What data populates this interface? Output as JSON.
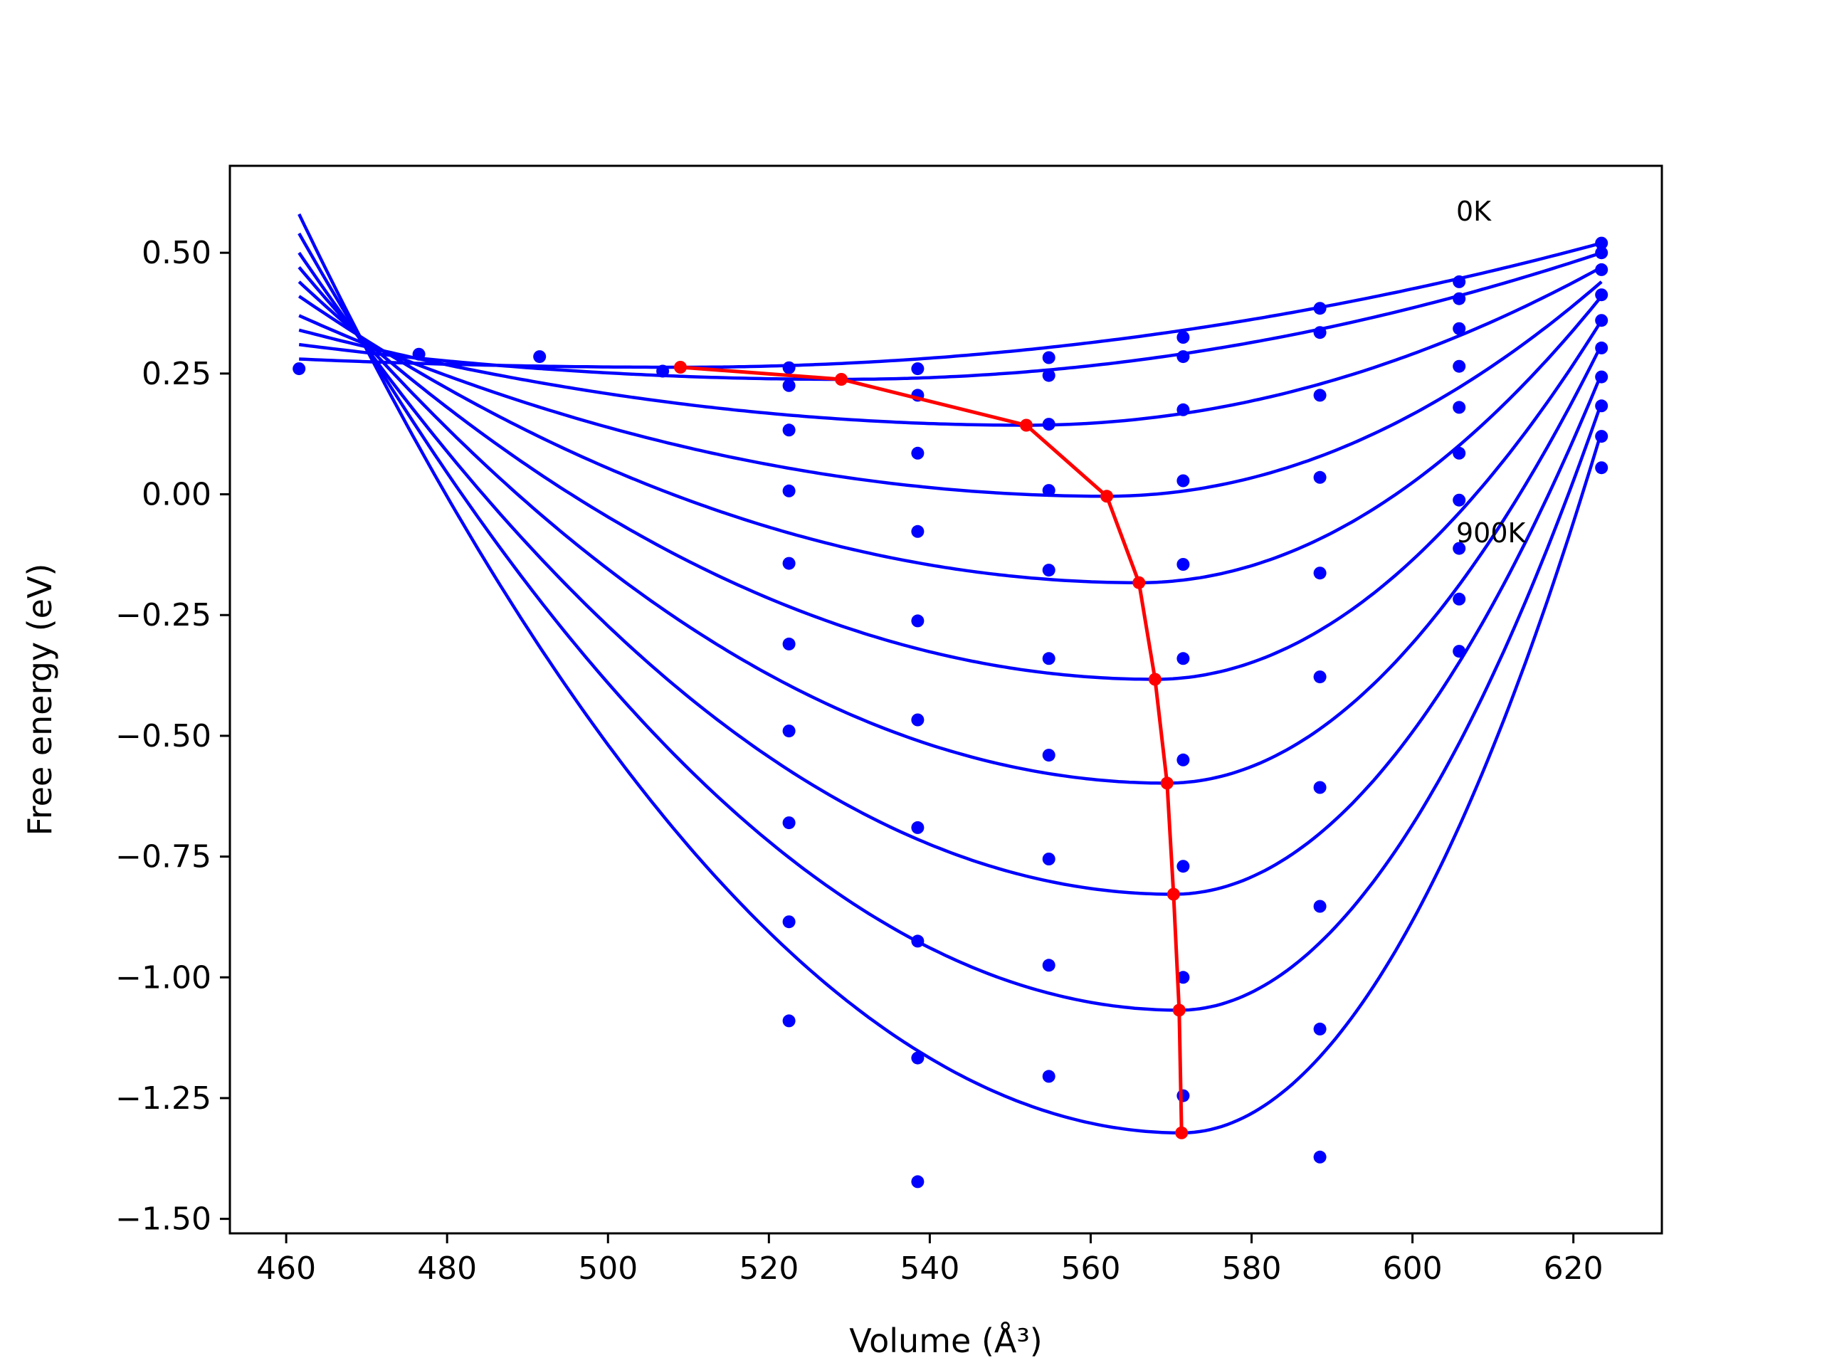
{
  "chart_data": {
    "type": "line",
    "xlabel": "Volume (Å³)",
    "ylabel": "Free energy (eV)",
    "xlim": [
      453,
      631
    ],
    "ylim": [
      -1.53,
      0.68
    ],
    "xticks": [
      460,
      480,
      500,
      520,
      540,
      560,
      580,
      600,
      620
    ],
    "xtick_labels": [
      "460",
      "480",
      "500",
      "520",
      "540",
      "560",
      "580",
      "600",
      "620"
    ],
    "yticks": [
      0.5,
      0.25,
      0.0,
      -0.25,
      -0.5,
      -0.75,
      -1.0,
      -1.25,
      -1.5
    ],
    "ytick_labels": [
      "0.50",
      "0.25",
      "0.00",
      "−0.25",
      "−0.50",
      "−0.75",
      "−1.00",
      "−1.25",
      "−1.50"
    ],
    "grid": false,
    "annotations": [
      {
        "text": "0K",
        "x": 606,
        "y": 0.58
      },
      {
        "text": "900K",
        "x": 606,
        "y": -0.08
      }
    ],
    "colors": {
      "fit_curves": "#0000ff",
      "data_points": "#0000ff",
      "minimum_path": "#ff0000"
    },
    "volumes": [
      461.6,
      476.5,
      491.5,
      506.8,
      522.5,
      538.5,
      554.8,
      571.5,
      588.5,
      605.8,
      623.5
    ],
    "fit_curves": [
      {
        "min_x": 509,
        "min_y": 0.263,
        "y_left": 0.28,
        "y_right": 0.52
      },
      {
        "min_x": 529,
        "min_y": 0.238,
        "y_left": 0.31,
        "y_right": 0.5
      },
      {
        "min_x": 552,
        "min_y": 0.143,
        "y_left": 0.34,
        "y_right": 0.47
      },
      {
        "min_x": 562,
        "min_y": -0.004,
        "y_left": 0.37,
        "y_right": 0.44
      },
      {
        "min_x": 566,
        "min_y": -0.183,
        "y_left": 0.41,
        "y_right": 0.41
      },
      {
        "min_x": 568,
        "min_y": -0.383,
        "y_left": 0.44,
        "y_right": 0.36
      },
      {
        "min_x": 569.5,
        "min_y": -0.598,
        "y_left": 0.47,
        "y_right": 0.31
      },
      {
        "min_x": 570.3,
        "min_y": -0.828,
        "y_left": 0.5,
        "y_right": 0.25
      },
      {
        "min_x": 571,
        "min_y": -1.068,
        "y_left": 0.54,
        "y_right": 0.19
      },
      {
        "min_x": 571.3,
        "min_y": -1.322,
        "y_left": 0.58,
        "y_right": 0.13
      }
    ],
    "minimum_path": {
      "x": [
        509,
        529,
        552,
        562,
        566,
        568,
        569.5,
        570.3,
        571,
        571.3
      ],
      "y": [
        0.263,
        0.238,
        0.143,
        -0.004,
        -0.183,
        -0.383,
        -0.598,
        -0.828,
        -1.068,
        -1.322
      ]
    },
    "data_points": [
      {
        "x": 461.6,
        "y": 0.26
      },
      {
        "x": 476.5,
        "y": 0.29
      },
      {
        "x": 491.5,
        "y": 0.285
      },
      {
        "x": 506.8,
        "y": 0.255
      },
      {
        "x": 522.5,
        "y": 0.262
      },
      {
        "x": 522.5,
        "y": 0.225
      },
      {
        "x": 522.5,
        "y": 0.133
      },
      {
        "x": 522.5,
        "y": 0.007
      },
      {
        "x": 522.5,
        "y": -0.143
      },
      {
        "x": 522.5,
        "y": -0.31
      },
      {
        "x": 522.5,
        "y": -0.49
      },
      {
        "x": 522.5,
        "y": -0.68
      },
      {
        "x": 522.5,
        "y": -0.885
      },
      {
        "x": 522.5,
        "y": -1.09
      },
      {
        "x": 538.5,
        "y": 0.26
      },
      {
        "x": 538.5,
        "y": 0.205
      },
      {
        "x": 538.5,
        "y": 0.085
      },
      {
        "x": 538.5,
        "y": -0.077
      },
      {
        "x": 538.5,
        "y": -0.262
      },
      {
        "x": 538.5,
        "y": -0.467
      },
      {
        "x": 538.5,
        "y": -0.69
      },
      {
        "x": 538.5,
        "y": -0.925
      },
      {
        "x": 538.5,
        "y": -1.167
      },
      {
        "x": 538.5,
        "y": -1.423
      },
      {
        "x": 554.8,
        "y": 0.283
      },
      {
        "x": 554.8,
        "y": 0.246
      },
      {
        "x": 554.8,
        "y": 0.145
      },
      {
        "x": 554.8,
        "y": 0.008
      },
      {
        "x": 554.8,
        "y": -0.157
      },
      {
        "x": 554.8,
        "y": -0.34
      },
      {
        "x": 554.8,
        "y": -0.54
      },
      {
        "x": 554.8,
        "y": -0.755
      },
      {
        "x": 554.8,
        "y": -0.975
      },
      {
        "x": 554.8,
        "y": -1.205
      },
      {
        "x": 571.5,
        "y": 0.325
      },
      {
        "x": 571.5,
        "y": 0.285
      },
      {
        "x": 571.5,
        "y": 0.175
      },
      {
        "x": 571.5,
        "y": 0.028
      },
      {
        "x": 571.5,
        "y": -0.145
      },
      {
        "x": 571.5,
        "y": -0.34
      },
      {
        "x": 571.5,
        "y": -0.55
      },
      {
        "x": 571.5,
        "y": -0.77
      },
      {
        "x": 571.5,
        "y": -1.0
      },
      {
        "x": 571.5,
        "y": -1.245
      },
      {
        "x": 588.5,
        "y": 0.385
      },
      {
        "x": 588.5,
        "y": 0.335
      },
      {
        "x": 588.5,
        "y": 0.205
      },
      {
        "x": 588.5,
        "y": 0.035
      },
      {
        "x": 588.5,
        "y": -0.163
      },
      {
        "x": 588.5,
        "y": -0.378
      },
      {
        "x": 588.5,
        "y": -0.607
      },
      {
        "x": 588.5,
        "y": -0.853
      },
      {
        "x": 588.5,
        "y": -1.107
      },
      {
        "x": 588.5,
        "y": -1.372
      },
      {
        "x": 605.8,
        "y": 0.44
      },
      {
        "x": 605.8,
        "y": 0.405
      },
      {
        "x": 605.8,
        "y": 0.343
      },
      {
        "x": 605.8,
        "y": 0.265
      },
      {
        "x": 605.8,
        "y": 0.18
      },
      {
        "x": 605.8,
        "y": 0.085
      },
      {
        "x": 605.8,
        "y": -0.012
      },
      {
        "x": 605.8,
        "y": -0.112
      },
      {
        "x": 605.8,
        "y": -0.217
      },
      {
        "x": 605.8,
        "y": -0.325
      },
      {
        "x": 623.5,
        "y": 0.52
      },
      {
        "x": 623.5,
        "y": 0.5
      },
      {
        "x": 623.5,
        "y": 0.465
      },
      {
        "x": 623.5,
        "y": 0.413
      },
      {
        "x": 623.5,
        "y": 0.36
      },
      {
        "x": 623.5,
        "y": 0.303
      },
      {
        "x": 623.5,
        "y": 0.243
      },
      {
        "x": 623.5,
        "y": 0.183
      },
      {
        "x": 623.5,
        "y": 0.12
      },
      {
        "x": 623.5,
        "y": 0.055
      }
    ]
  }
}
